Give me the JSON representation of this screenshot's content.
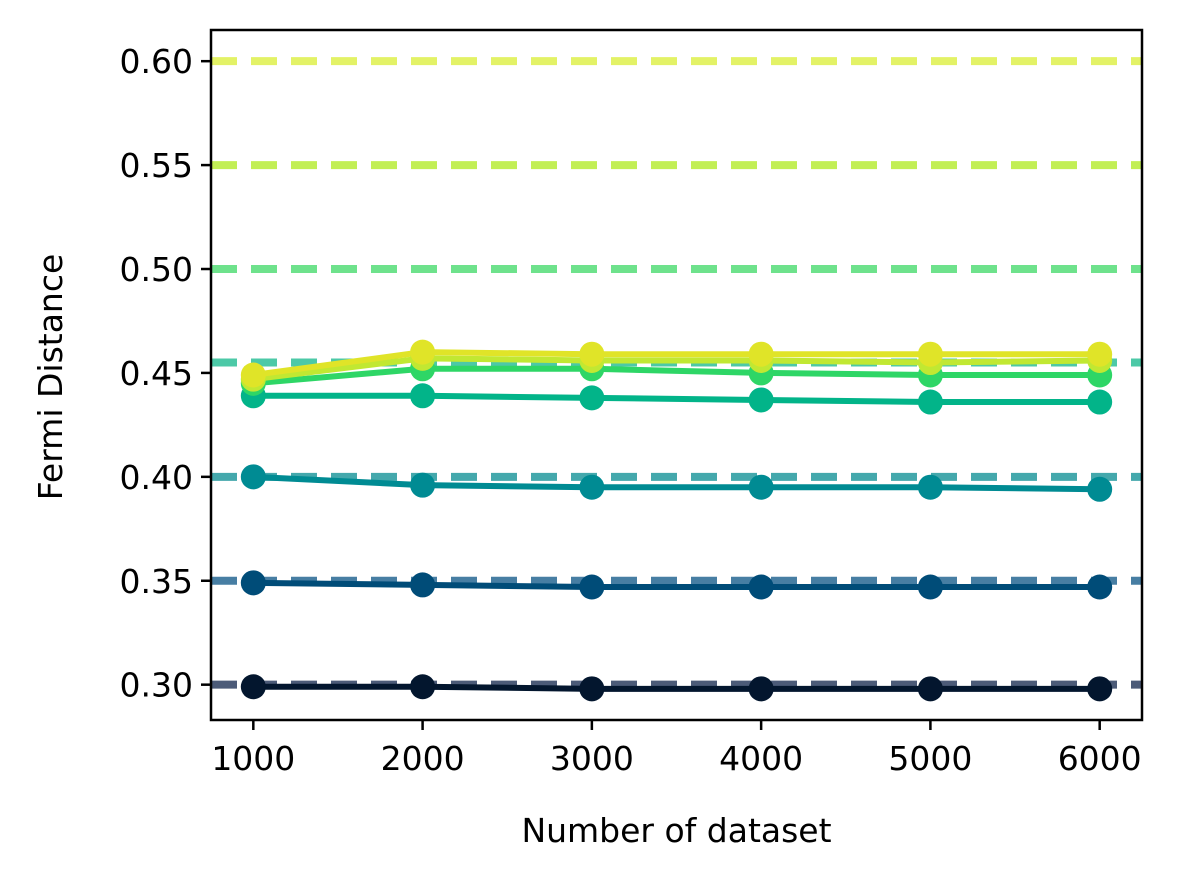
{
  "chart_data": {
    "type": "line",
    "title": "",
    "xlabel": "Number of dataset",
    "ylabel": "Fermi Distance",
    "x": [
      1000,
      2000,
      3000,
      4000,
      5000,
      6000
    ],
    "xlim": [
      750,
      6250
    ],
    "ylim": [
      0.283,
      0.615
    ],
    "x_ticks": [
      1000,
      2000,
      3000,
      4000,
      5000,
      6000
    ],
    "y_ticks": [
      0.3,
      0.35,
      0.4,
      0.45,
      0.5,
      0.55,
      0.6
    ],
    "x_tick_labels": [
      "1000",
      "2000",
      "3000",
      "4000",
      "5000",
      "6000"
    ],
    "y_tick_labels": [
      "0.30",
      "0.35",
      "0.40",
      "0.45",
      "0.50",
      "0.55",
      "0.60"
    ],
    "grid": false,
    "legend": "none",
    "reference_lines": [
      {
        "y": 0.3,
        "color": "#4c5b78"
      },
      {
        "y": 0.35,
        "color": "#477ea3"
      },
      {
        "y": 0.4,
        "color": "#44a8ac"
      },
      {
        "y": 0.455,
        "color": "#4cc9a7"
      },
      {
        "y": 0.5,
        "color": "#6ee28c"
      },
      {
        "y": 0.55,
        "color": "#c2ef55"
      },
      {
        "y": 0.6,
        "color": "#e3f266"
      }
    ],
    "series": [
      {
        "color": "#03162e",
        "values": [
          0.299,
          0.299,
          0.298,
          0.298,
          0.298,
          0.298
        ]
      },
      {
        "color": "#004c78",
        "values": [
          0.349,
          0.348,
          0.347,
          0.347,
          0.347,
          0.347
        ]
      },
      {
        "color": "#008b93",
        "values": [
          0.4,
          0.396,
          0.395,
          0.395,
          0.395,
          0.394
        ]
      },
      {
        "color": "#02b489",
        "values": [
          0.439,
          0.439,
          0.438,
          0.437,
          0.436,
          0.436
        ]
      },
      {
        "color": "#2ed666",
        "values": [
          0.445,
          0.452,
          0.452,
          0.45,
          0.449,
          0.449
        ]
      },
      {
        "color": "#c1e832",
        "values": [
          0.447,
          0.457,
          0.456,
          0.456,
          0.455,
          0.456
        ]
      },
      {
        "color": "#e0e428",
        "values": [
          0.449,
          0.46,
          0.459,
          0.459,
          0.459,
          0.459
        ]
      }
    ]
  }
}
